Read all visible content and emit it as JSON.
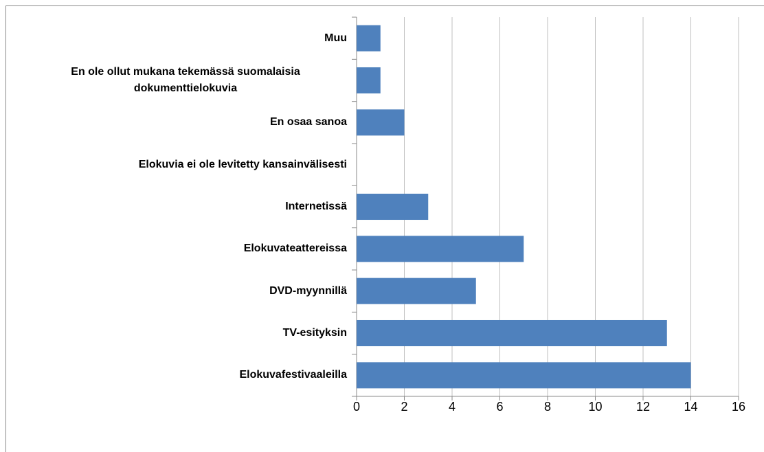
{
  "chart_data": {
    "type": "bar",
    "orientation": "horizontal",
    "categories": [
      "Muu",
      "En ole ollut mukana tekemässä suomalaisia dokumenttielokuvia",
      "En osaa sanoa",
      "Elokuvia ei ole levitetty kansainvälisesti",
      "Internetissä",
      "Elokuvateattereissa",
      "DVD-myynnillä",
      "TV-esityksin",
      "Elokuvafestivaaleilla"
    ],
    "values": [
      1,
      1,
      2,
      0,
      3,
      7,
      5,
      13,
      14
    ],
    "color": "#4f81bd",
    "xlim": [
      0,
      16
    ],
    "xticks": [
      0,
      2,
      4,
      6,
      8,
      10,
      12,
      14,
      16
    ],
    "grid": true
  }
}
